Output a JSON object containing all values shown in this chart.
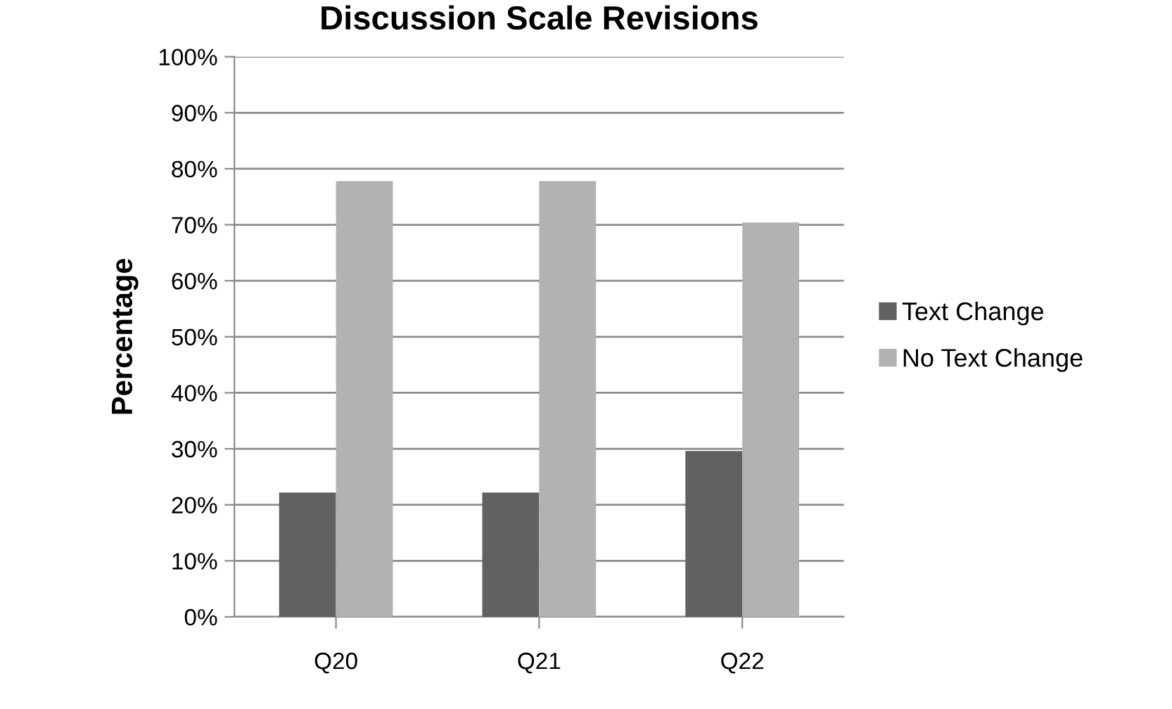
{
  "chart_data": {
    "type": "bar",
    "title": "Discussion Scale Revisions",
    "ylabel": "Percentage",
    "categories": [
      "Q20",
      "Q21",
      "Q22"
    ],
    "series": [
      {
        "name": "Text Change",
        "color": "#616161",
        "values": [
          22.2,
          22.2,
          29.6
        ]
      },
      {
        "name": "No Text Change",
        "color": "#b2b2b2",
        "values": [
          77.8,
          77.8,
          70.4
        ]
      }
    ],
    "ylim": [
      0,
      100
    ],
    "yticks": [
      {
        "value": 0,
        "label": "0%"
      },
      {
        "value": 10,
        "label": "10%"
      },
      {
        "value": 20,
        "label": "20%"
      },
      {
        "value": 30,
        "label": "30%"
      },
      {
        "value": 40,
        "label": "40%"
      },
      {
        "value": 50,
        "label": "50%"
      },
      {
        "value": 60,
        "label": "60%"
      },
      {
        "value": 70,
        "label": "70%"
      },
      {
        "value": 80,
        "label": "80%"
      },
      {
        "value": 90,
        "label": "90%"
      },
      {
        "value": 100,
        "label": "100%"
      }
    ],
    "grid": "y",
    "legend": "right"
  }
}
